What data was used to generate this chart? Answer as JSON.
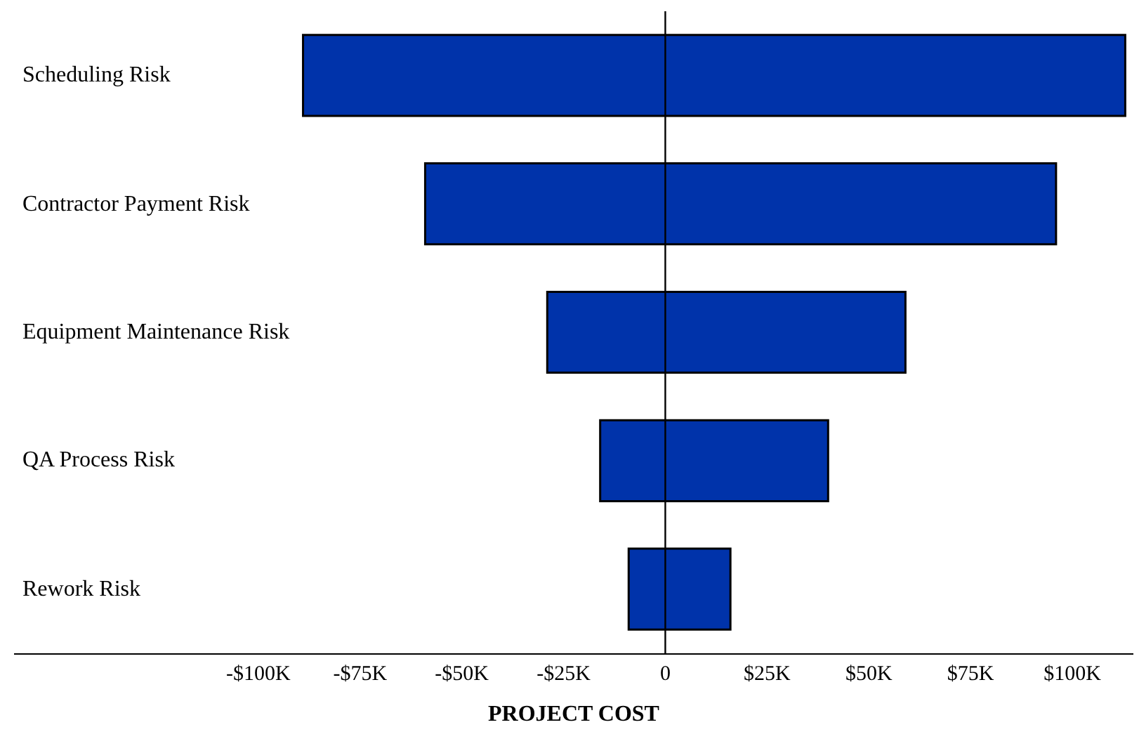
{
  "chart_data": {
    "type": "bar",
    "orientation": "horizontal",
    "xlabel": "PROJECT COST",
    "categories": [
      "Scheduling Risk",
      "Contractor Payment Risk",
      "Equipment Maintenance Risk",
      "QA Process Risk",
      "Rework Risk"
    ],
    "base": [
      -89000,
      -59000,
      -29000,
      -16000,
      -9000
    ],
    "values": [
      202000,
      155000,
      88000,
      56000,
      25000
    ],
    "color": "#0033aa",
    "xlim": [
      -160000,
      115000
    ],
    "xticks": [
      {
        "value": -100000,
        "label": "-$100K"
      },
      {
        "value": -75000,
        "label": "-$75K"
      },
      {
        "value": -50000,
        "label": "-$50K"
      },
      {
        "value": -25000,
        "label": "-$25K"
      },
      0,
      {
        "value": 25000,
        "label": "$25K"
      },
      {
        "value": 50000,
        "label": "$50K"
      },
      {
        "value": 75000,
        "label": "$75K"
      },
      {
        "value": 100000,
        "label": "$100K"
      }
    ],
    "ref_lines": [
      {
        "axis": "x",
        "value": 0,
        "color": "#000000"
      }
    ],
    "legend": false
  }
}
